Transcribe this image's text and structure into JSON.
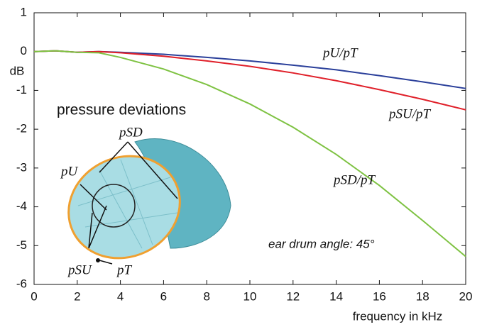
{
  "chart_data": {
    "type": "line",
    "annotation": "pressure deviations",
    "note": "ear drum angle: 45°",
    "ylabel": "dB",
    "xlabel": "frequency in kHz",
    "x": [
      0,
      1,
      2,
      3,
      4,
      6,
      8,
      10,
      12,
      14,
      16,
      18,
      20
    ],
    "series": [
      {
        "name": "pU/pT",
        "color": "#2a3f9a",
        "values": [
          0,
          0.02,
          -0.02,
          0,
          -0.02,
          -0.07,
          -0.15,
          -0.24,
          -0.35,
          -0.47,
          -0.62,
          -0.78,
          -0.95
        ]
      },
      {
        "name": "pSU/pT",
        "color": "#e0202a",
        "values": [
          0,
          0.02,
          -0.02,
          0,
          -0.03,
          -0.12,
          -0.24,
          -0.38,
          -0.55,
          -0.75,
          -0.98,
          -1.23,
          -1.5
        ]
      },
      {
        "name": "pSD/pT",
        "color": "#7ec242",
        "values": [
          0,
          0.02,
          -0.02,
          -0.03,
          -0.15,
          -0.45,
          -0.85,
          -1.35,
          -1.95,
          -2.65,
          -3.45,
          -4.35,
          -5.28
        ]
      }
    ],
    "inset_labels": [
      "pSD",
      "pU",
      "pSU",
      "pT"
    ],
    "xlim": [
      0,
      20
    ],
    "xticks": [
      0,
      2,
      4,
      6,
      8,
      10,
      12,
      14,
      16,
      18,
      20
    ],
    "ylim": [
      -6,
      1
    ],
    "yticks": [
      -6,
      -5,
      -4,
      -3,
      -2,
      -1,
      0,
      1
    ],
    "grid": false
  }
}
